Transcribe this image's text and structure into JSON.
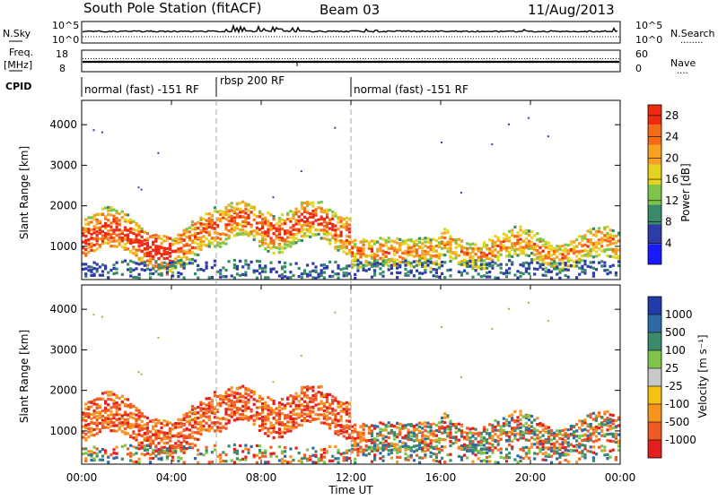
{
  "header": {
    "station": "South Pole Station (fitACF)",
    "beam": "Beam 03",
    "date": "11/Aug/2013"
  },
  "nsky_panel": {
    "left_label": "N.Sky",
    "left_tick_top": "10^5",
    "left_tick_bottom": "10^0",
    "right_tick_top": "10^5",
    "right_tick_bottom": "10^0",
    "right_label": "N.Search",
    "right_dots": "........"
  },
  "freq_panel": {
    "left_label_1": "Freq.",
    "left_label_2": "[MHz]",
    "left_tick_top": "18",
    "left_tick_bottom": "8",
    "right_tick_top": "60",
    "right_tick_bottom": "0",
    "right_label": "Nave",
    "right_dots": "...."
  },
  "cpid_panel": {
    "label": "CPID",
    "segments": [
      {
        "start_hour": 0,
        "end_hour": 6,
        "label": "normal (fast) -151 RF"
      },
      {
        "start_hour": 6,
        "end_hour": 12,
        "label": "rbsp 200 RF"
      },
      {
        "start_hour": 12,
        "end_hour": 24,
        "label": "normal (fast) -151 RF"
      }
    ]
  },
  "chart_data": [
    {
      "type": "heatmap",
      "name": "power",
      "ylabel": "Slant Range [km]",
      "ylim": [
        180,
        4600
      ],
      "y_ticks": [
        "1000",
        "2000",
        "3000",
        "4000"
      ],
      "colorbar": {
        "label": "Power [dB]",
        "ticks": [
          "4",
          "8",
          "12",
          "16",
          "20",
          "24",
          "28"
        ],
        "range": [
          0,
          30
        ]
      },
      "colors": [
        "#1a1aff",
        "#2e3ca8",
        "#3a8a6a",
        "#7fc44a",
        "#e7d21f",
        "#f7a11f",
        "#f46a17",
        "#ef2a10"
      ]
    },
    {
      "type": "heatmap",
      "name": "velocity",
      "ylabel": "Slant Range [km]",
      "ylim": [
        180,
        4600
      ],
      "y_ticks": [
        "1000",
        "2000",
        "3000",
        "4000"
      ],
      "colorbar": {
        "label": "Velocity [m s⁻¹]",
        "ticks": [
          "1000",
          "500",
          "100",
          "25",
          "-25",
          "-100",
          "-500",
          "-1000"
        ]
      },
      "colors": [
        "#1f3ca8",
        "#2f6aa8",
        "#3b8a6a",
        "#7fc44a",
        "#c8c8c8",
        "#f5c116",
        "#f7941d",
        "#f15a22",
        "#e51e1e"
      ]
    }
  ],
  "x_axis": {
    "label": "Time UT",
    "ticks": [
      "00:00",
      "04:00",
      "08:00",
      "12:00",
      "16:00",
      "20:00",
      "00:00"
    ],
    "range_hours": [
      0,
      24
    ]
  }
}
